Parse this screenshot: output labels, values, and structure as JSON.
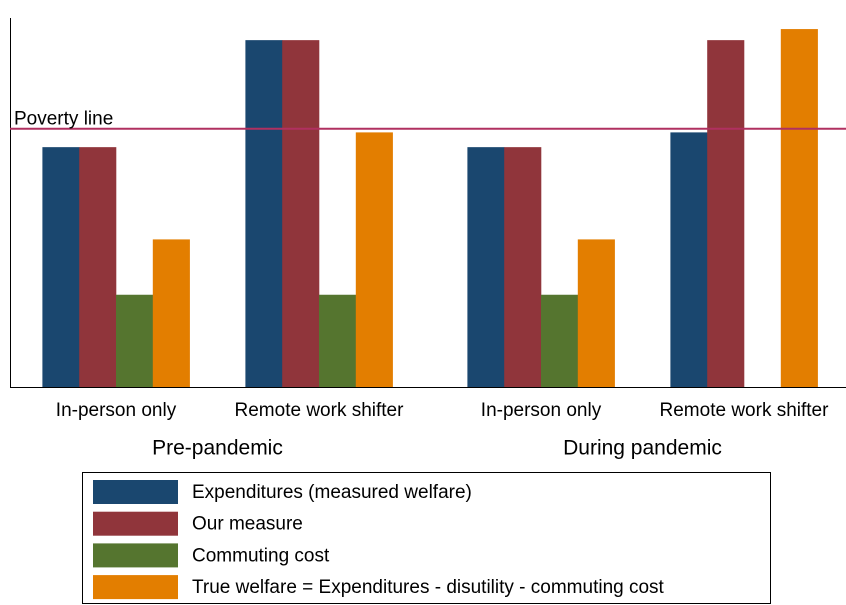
{
  "chart_data": {
    "type": "bar",
    "categories": [
      "In-person only",
      "Remote work shifter",
      "In-person only",
      "Remote work shifter"
    ],
    "groups": [
      "Pre-pandemic",
      "During pandemic"
    ],
    "series": [
      {
        "name": "Expenditures (measured welfare)",
        "color": "#1a476f",
        "values": [
          6.5,
          9.4,
          6.5,
          6.9
        ]
      },
      {
        "name": "Our measure",
        "color": "#90353b",
        "values": [
          6.5,
          9.4,
          6.5,
          9.4
        ]
      },
      {
        "name": "Commuting cost",
        "color": "#55752f",
        "values": [
          2.5,
          2.5,
          2.5,
          null
        ]
      },
      {
        "name": "True welfare = Expenditures - disutility - commuting cost",
        "color": "#e37e00",
        "values": [
          4.0,
          6.9,
          4.0,
          9.7
        ]
      }
    ],
    "reference_line": {
      "value": 7.0,
      "label": "Poverty line",
      "color": "#b03060"
    },
    "ylim": [
      0,
      10
    ]
  }
}
